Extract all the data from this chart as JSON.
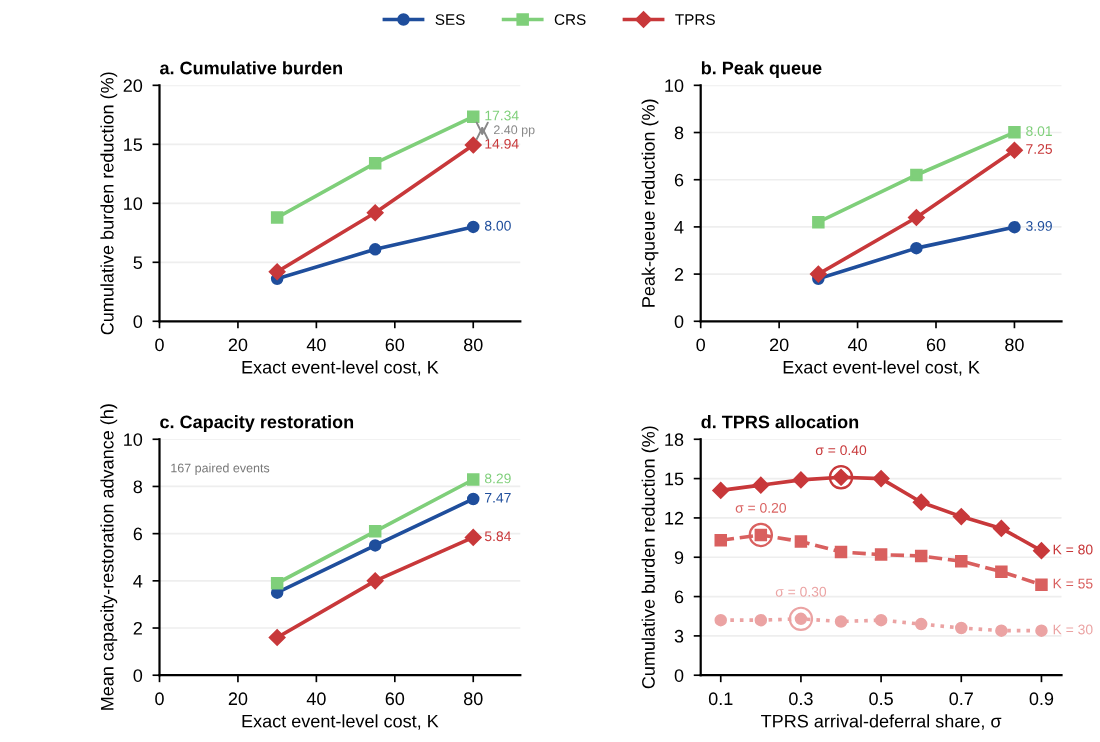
{
  "chart_data": [
    {
      "type": "line",
      "title": "a. Cumulative burden",
      "xlabel": "Exact event-level cost, K",
      "ylabel": "Cumulative burden reduction (%)",
      "x": [
        30,
        55,
        80
      ],
      "xlim": [
        0,
        92
      ],
      "xticks": [
        0,
        20,
        40,
        60,
        80
      ],
      "ylim": [
        0,
        20
      ],
      "yticks": [
        0,
        5,
        10,
        15,
        20
      ],
      "grid": "y",
      "legend": "top",
      "series": [
        {
          "name": "SES",
          "color": "#1f4e9c",
          "marker": "circle",
          "values": [
            3.6,
            6.1,
            8.0
          ],
          "value_labels": [
            null,
            null,
            "8.00"
          ]
        },
        {
          "name": "CRS",
          "color": "#7fcf7a",
          "marker": "square",
          "values": [
            8.8,
            13.4,
            17.34
          ],
          "value_labels": [
            null,
            null,
            "17.34"
          ]
        },
        {
          "name": "TPRS",
          "color": "#c8383a",
          "marker": "diamond",
          "values": [
            4.2,
            9.2,
            14.94
          ],
          "value_labels": [
            null,
            null,
            "14.94"
          ]
        }
      ],
      "annotations": [
        {
          "text": "2.40 pp",
          "x": 80,
          "y": 16.14
        }
      ]
    },
    {
      "type": "line",
      "title": "b. Peak queue",
      "xlabel": "Exact event-level cost, K",
      "ylabel": "Peak-queue reduction (%)",
      "x": [
        30,
        55,
        80
      ],
      "xlim": [
        0,
        92
      ],
      "xticks": [
        0,
        20,
        40,
        60,
        80
      ],
      "ylim": [
        0,
        10
      ],
      "yticks": [
        0,
        2,
        4,
        6,
        8,
        10
      ],
      "grid": "y",
      "series": [
        {
          "color": "#1f4e9c",
          "marker": "circle",
          "values": [
            1.8,
            3.1,
            3.99
          ],
          "value_labels": [
            null,
            null,
            "3.99"
          ]
        },
        {
          "color": "#7fcf7a",
          "marker": "square",
          "values": [
            4.2,
            6.2,
            8.01
          ],
          "value_labels": [
            null,
            null,
            "8.01"
          ]
        },
        {
          "color": "#c8383a",
          "marker": "diamond",
          "values": [
            2.0,
            4.4,
            7.25
          ],
          "value_labels": [
            null,
            null,
            "7.25"
          ]
        }
      ]
    },
    {
      "type": "line",
      "title": "c. Capacity restoration",
      "xlabel": "Exact event-level cost, K",
      "ylabel": "Mean capacity-restoration advance (h)",
      "x": [
        30,
        55,
        80
      ],
      "xlim": [
        0,
        92
      ],
      "xticks": [
        0,
        20,
        40,
        60,
        80
      ],
      "ylim": [
        0,
        10
      ],
      "yticks": [
        0,
        2,
        4,
        6,
        8,
        10
      ],
      "grid": "y",
      "series": [
        {
          "color": "#1f4e9c",
          "marker": "circle",
          "values": [
            3.5,
            5.5,
            7.47
          ],
          "value_labels": [
            null,
            null,
            "7.47"
          ]
        },
        {
          "color": "#7fcf7a",
          "marker": "square",
          "values": [
            3.9,
            6.1,
            8.29
          ],
          "value_labels": [
            null,
            null,
            "8.29"
          ]
        },
        {
          "color": "#c8383a",
          "marker": "diamond",
          "values": [
            1.6,
            4.0,
            5.84
          ],
          "value_labels": [
            null,
            null,
            "5.84"
          ]
        }
      ],
      "annotations": [
        "167 paired events"
      ]
    },
    {
      "type": "line",
      "title": "d. TPRS allocation",
      "xlabel": "TPRS arrival-deferral share, σ",
      "ylabel": "Cumulative burden reduction (%)",
      "x": [
        0.1,
        0.2,
        0.3,
        0.4,
        0.5,
        0.6,
        0.7,
        0.8,
        0.9
      ],
      "xlim": [
        0.05,
        0.95
      ],
      "xticks": [
        0.1,
        0.3,
        0.5,
        0.7,
        0.9
      ],
      "ylim": [
        0,
        18
      ],
      "yticks": [
        0,
        3,
        6,
        9,
        12,
        15,
        18
      ],
      "grid": "y",
      "series": [
        {
          "name": "K = 80",
          "color": "#c8383a",
          "marker": "diamond",
          "line_style": "solid",
          "values": [
            14.1,
            14.5,
            14.9,
            15.1,
            15.0,
            13.2,
            12.1,
            11.2,
            9.5
          ]
        },
        {
          "name": "K = 55",
          "color": "#d9605f",
          "marker": "square",
          "line_style": "dashed",
          "values": [
            10.3,
            10.7,
            10.2,
            9.4,
            9.2,
            9.1,
            8.7,
            7.9,
            6.9
          ]
        },
        {
          "name": "K = 30",
          "color": "#eba3a3",
          "marker": "circle",
          "line_style": "dotted",
          "values": [
            4.2,
            4.2,
            4.3,
            4.1,
            4.2,
            3.9,
            3.6,
            3.4,
            3.4
          ]
        }
      ],
      "annotations": [
        {
          "text": "σ = 0.40",
          "x": 0.4,
          "y": 15.1
        },
        {
          "text": "σ = 0.20",
          "x": 0.2,
          "y": 10.7
        },
        {
          "text": "σ = 0.30",
          "x": 0.3,
          "y": 4.3
        }
      ]
    }
  ]
}
